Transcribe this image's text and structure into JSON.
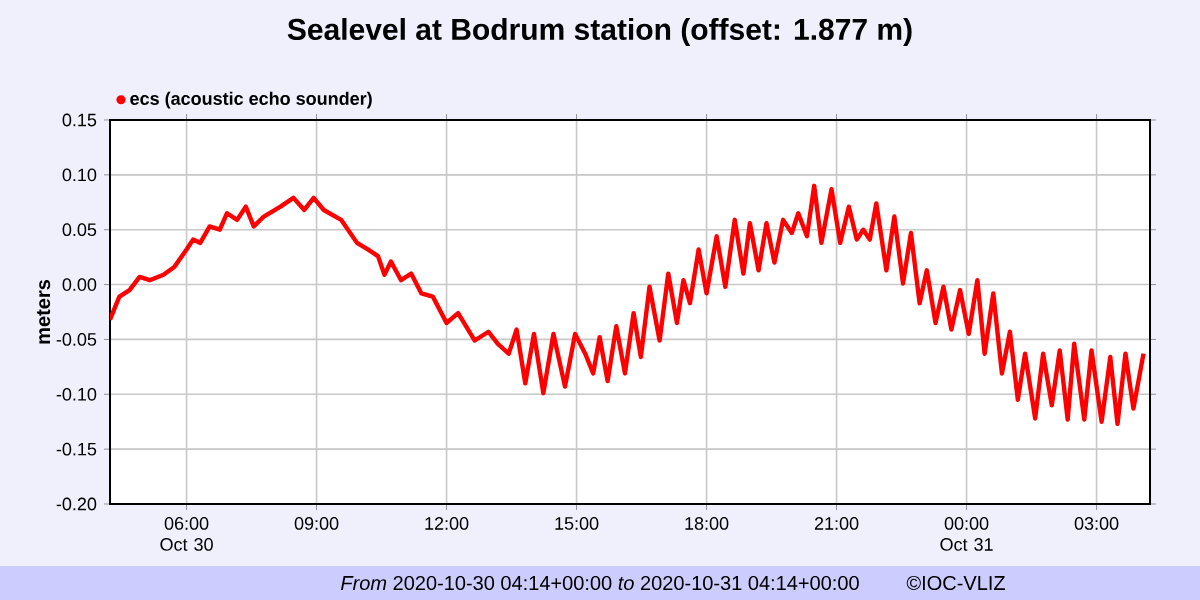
{
  "chart_data": {
    "type": "line",
    "title": "Sealevel at Bodrum station (offset: 1.877 m)",
    "ylabel": "meters",
    "xlim": [
      "2020-10-30T04:14",
      "2020-10-31T04:14"
    ],
    "xticks": [
      {
        "value": "2020-10-30T06:00",
        "label": "06:00 Oct 30"
      },
      {
        "value": "2020-10-30T09:00",
        "label": "09:00"
      },
      {
        "value": "2020-10-30T12:00",
        "label": "12:00"
      },
      {
        "value": "2020-10-30T15:00",
        "label": "15:00"
      },
      {
        "value": "2020-10-30T18:00",
        "label": "18:00"
      },
      {
        "value": "2020-10-30T21:00",
        "label": "21:00"
      },
      {
        "value": "2020-10-31T00:00",
        "label": "00:00 Oct 31"
      },
      {
        "value": "2020-10-31T03:00",
        "label": "03:00"
      }
    ],
    "ylim": [
      -0.2,
      0.15
    ],
    "yticks": [
      {
        "value": -0.2,
        "label": "-0.20"
      },
      {
        "value": -0.15,
        "label": "-0.15"
      },
      {
        "value": -0.1,
        "label": "-0.10"
      },
      {
        "value": -0.05,
        "label": "-0.05"
      },
      {
        "value": 0,
        "label": "0.00"
      },
      {
        "value": 0.05,
        "label": "0.05"
      },
      {
        "value": 0.1,
        "label": "0.10"
      },
      {
        "value": 0.15,
        "label": "0.15"
      }
    ],
    "grid": true,
    "legend": "top left",
    "annotations": [
      "*From* 2020-10-30 04:14+00:00 *to* 2020-10-31 04:14+00:00",
      "©IOC-VLIZ"
    ],
    "series": [
      {
        "name": "ecs (acoustic echo sounder)",
        "color": "#ff0000",
        "x": [
          "2020-10-30T04:14",
          "2020-10-30T04:27",
          "2020-10-30T04:41",
          "2020-10-30T04:55",
          "2020-10-30T05:09",
          "2020-10-30T05:28",
          "2020-10-30T05:43",
          "2020-10-30T06:00",
          "2020-10-30T06:09",
          "2020-10-30T06:19",
          "2020-10-30T06:32",
          "2020-10-30T06:46",
          "2020-10-30T06:56",
          "2020-10-30T07:10",
          "2020-10-30T07:22",
          "2020-10-30T07:33",
          "2020-10-30T07:47",
          "2020-10-30T08:10",
          "2020-10-30T08:28",
          "2020-10-30T08:43",
          "2020-10-30T08:56",
          "2020-10-30T09:10",
          "2020-10-30T09:34",
          "2020-10-30T09:56",
          "2020-10-30T10:11",
          "2020-10-30T10:25",
          "2020-10-30T10:34",
          "2020-10-30T10:43",
          "2020-10-30T10:57",
          "2020-10-30T11:11",
          "2020-10-30T11:25",
          "2020-10-30T11:41",
          "2020-10-30T12:00",
          "2020-10-30T12:16",
          "2020-10-30T12:39",
          "2020-10-30T12:58",
          "2020-10-30T13:11",
          "2020-10-30T13:26",
          "2020-10-30T13:37",
          "2020-10-30T13:49",
          "2020-10-30T14:01",
          "2020-10-30T14:14",
          "2020-10-30T14:28",
          "2020-10-30T14:44",
          "2020-10-30T14:58",
          "2020-10-30T15:12",
          "2020-10-30T15:23",
          "2020-10-30T15:32",
          "2020-10-30T15:43",
          "2020-10-30T15:55",
          "2020-10-30T16:07",
          "2020-10-30T16:19",
          "2020-10-30T16:29",
          "2020-10-30T16:41",
          "2020-10-30T16:55",
          "2020-10-30T17:07",
          "2020-10-30T17:19",
          "2020-10-30T17:28",
          "2020-10-30T17:37",
          "2020-10-30T17:49",
          "2020-10-30T18:00",
          "2020-10-30T18:14",
          "2020-10-30T18:26",
          "2020-10-30T18:39",
          "2020-10-30T18:51",
          "2020-10-30T19:00",
          "2020-10-30T19:12",
          "2020-10-30T19:23",
          "2020-10-30T19:34",
          "2020-10-30T19:46",
          "2020-10-30T19:58",
          "2020-10-30T20:07",
          "2020-10-30T20:19",
          "2020-10-30T20:29",
          "2020-10-30T20:39",
          "2020-10-30T20:53",
          "2020-10-30T21:05",
          "2020-10-30T21:17",
          "2020-10-30T21:28",
          "2020-10-30T21:37",
          "2020-10-30T21:46",
          "2020-10-30T21:55",
          "2020-10-30T22:09",
          "2020-10-30T22:20",
          "2020-10-30T22:32",
          "2020-10-30T22:43",
          "2020-10-30T22:55",
          "2020-10-30T23:05",
          "2020-10-30T23:17",
          "2020-10-30T23:28",
          "2020-10-30T23:39",
          "2020-10-30T23:51",
          "2020-10-31T00:03",
          "2020-10-31T00:15",
          "2020-10-31T00:25",
          "2020-10-31T00:37",
          "2020-10-31T00:49",
          "2020-10-31T01:00",
          "2020-10-31T01:11",
          "2020-10-31T01:21",
          "2020-10-31T01:35",
          "2020-10-31T01:46",
          "2020-10-31T01:58",
          "2020-10-31T02:09",
          "2020-10-31T02:20",
          "2020-10-31T02:29",
          "2020-10-31T02:43",
          "2020-10-31T02:53",
          "2020-10-31T03:07",
          "2020-10-31T03:19",
          "2020-10-31T03:29",
          "2020-10-31T03:40",
          "2020-10-31T03:51",
          "2020-10-31T04:05"
        ],
        "values": [
          -0.032,
          -0.011,
          -0.005,
          0.007,
          0.004,
          0.009,
          0.016,
          0.032,
          0.041,
          0.038,
          0.053,
          0.05,
          0.065,
          0.059,
          0.071,
          0.053,
          0.062,
          0.071,
          0.079,
          0.068,
          0.079,
          0.068,
          0.059,
          0.038,
          0.032,
          0.026,
          0.009,
          0.021,
          0.004,
          0.01,
          -0.008,
          -0.011,
          -0.035,
          -0.026,
          -0.051,
          -0.043,
          -0.054,
          -0.063,
          -0.041,
          -0.09,
          -0.045,
          -0.099,
          -0.045,
          -0.093,
          -0.045,
          -0.063,
          -0.081,
          -0.048,
          -0.088,
          -0.038,
          -0.081,
          -0.026,
          -0.066,
          -0.002,
          -0.051,
          0.01,
          -0.035,
          0.004,
          -0.017,
          0.032,
          -0.008,
          0.044,
          -0.002,
          0.059,
          0.01,
          0.056,
          0.013,
          0.056,
          0.02,
          0.059,
          0.047,
          0.065,
          0.044,
          0.09,
          0.038,
          0.087,
          0.038,
          0.071,
          0.041,
          0.05,
          0.041,
          0.074,
          0.013,
          0.062,
          0.001,
          0.047,
          -0.017,
          0.013,
          -0.035,
          -0.002,
          -0.041,
          -0.005,
          -0.045,
          0.004,
          -0.063,
          -0.008,
          -0.081,
          -0.043,
          -0.105,
          -0.063,
          -0.122,
          -0.063,
          -0.11,
          -0.06,
          -0.123,
          -0.054,
          -0.123,
          -0.06,
          -0.125,
          -0.066,
          -0.127,
          -0.063,
          -0.113,
          -0.063
        ]
      }
    ]
  }
}
